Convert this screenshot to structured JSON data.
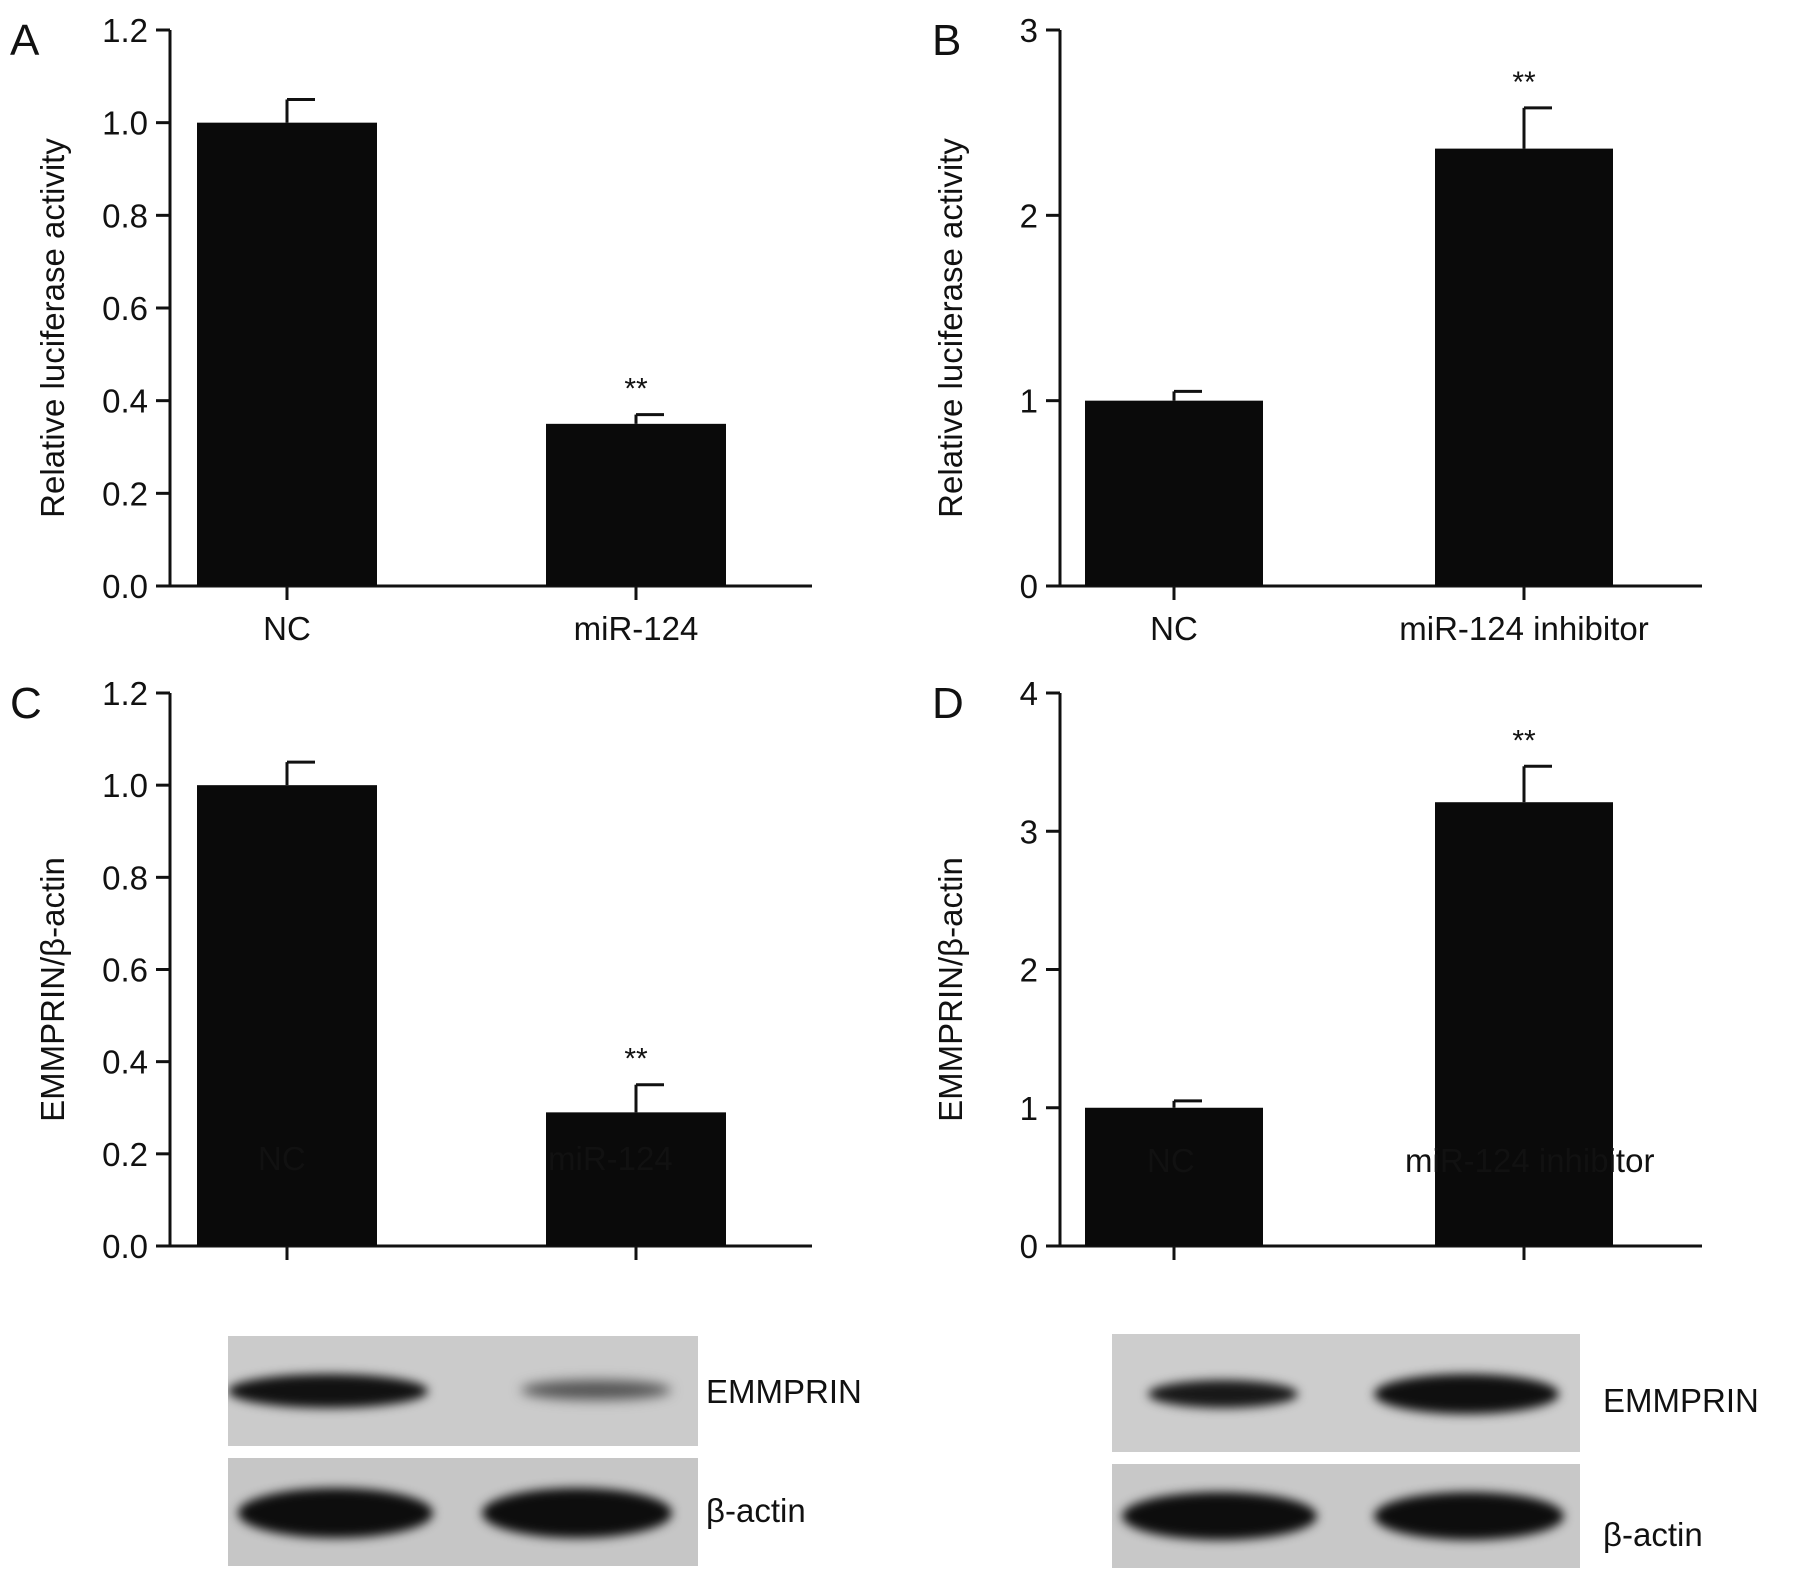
{
  "chart_data": [
    {
      "panel": "A",
      "type": "bar",
      "categories": [
        "NC",
        "miR-124"
      ],
      "values": [
        1.0,
        0.35
      ],
      "errors": [
        0.05,
        0.02
      ],
      "significance": [
        "",
        "**"
      ],
      "ylabel": "Relative luciferase activity",
      "ylim": [
        0,
        1.2
      ],
      "yticks": [
        "0.0",
        "0.2",
        "0.4",
        "0.6",
        "0.8",
        "1.0",
        "1.2"
      ],
      "bar_color": "#0a0a0a"
    },
    {
      "panel": "B",
      "type": "bar",
      "categories": [
        "NC",
        "miR-124 inhibitor"
      ],
      "values": [
        1.0,
        2.36
      ],
      "errors": [
        0.05,
        0.22
      ],
      "significance": [
        "",
        "**"
      ],
      "ylabel": "Relative luciferase activity",
      "ylim": [
        0,
        3
      ],
      "yticks": [
        "0",
        "1",
        "2",
        "3"
      ],
      "bar_color": "#0a0a0a"
    },
    {
      "panel": "C",
      "type": "bar",
      "categories": [
        "NC",
        "miR-124"
      ],
      "values": [
        1.0,
        0.29
      ],
      "errors": [
        0.05,
        0.06
      ],
      "significance": [
        "",
        "**"
      ],
      "ylabel": "EMMPRIN/β-actin",
      "ylim": [
        0,
        1.2
      ],
      "yticks": [
        "0.0",
        "0.2",
        "0.4",
        "0.6",
        "0.8",
        "1.0",
        "1.2"
      ],
      "bar_color": "#0a0a0a"
    },
    {
      "panel": "D",
      "type": "bar",
      "categories": [
        "NC",
        "miR-124 inhibitor"
      ],
      "values": [
        1.0,
        3.21
      ],
      "errors": [
        0.05,
        0.26
      ],
      "significance": [
        "",
        "**"
      ],
      "ylabel": "EMMPRIN/β-actin",
      "ylim": [
        0,
        4
      ],
      "yticks": [
        "0",
        "1",
        "2",
        "3",
        "4"
      ],
      "bar_color": "#0a0a0a"
    }
  ],
  "blots": {
    "C": {
      "lane_labels": [
        "NC",
        "miR-124"
      ],
      "rows": [
        {
          "label": "EMMPRIN",
          "intensity": [
            0.95,
            0.45
          ]
        },
        {
          "label": "β-actin",
          "intensity": [
            1.0,
            1.0
          ]
        }
      ]
    },
    "D": {
      "lane_labels": [
        "NC",
        "miR-124 inhibitor"
      ],
      "rows": [
        {
          "label": "EMMPRIN",
          "intensity": [
            0.75,
            0.95
          ]
        },
        {
          "label": "β-actin",
          "intensity": [
            1.0,
            1.0
          ]
        }
      ]
    }
  }
}
